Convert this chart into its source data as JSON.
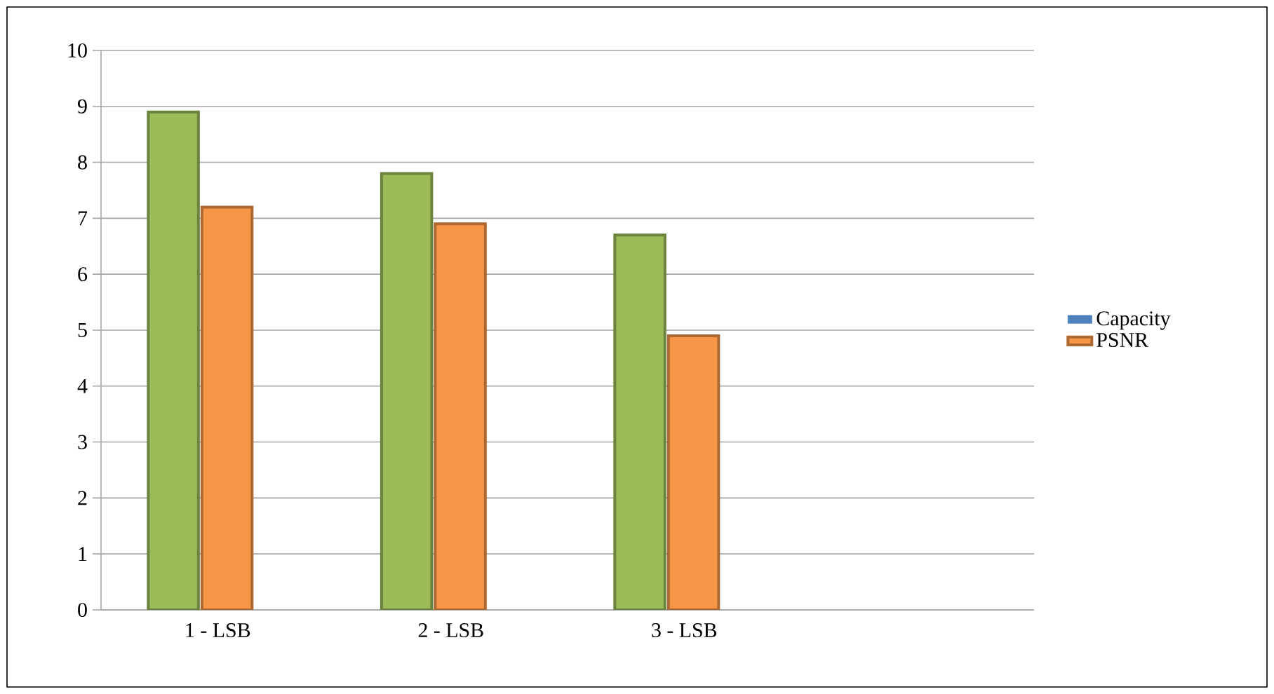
{
  "chart_data": {
    "type": "bar",
    "categories": [
      "1 - LSB",
      "2 - LSB",
      "3 - LSB",
      null
    ],
    "series": [
      {
        "color": "#9bbb59",
        "values": [
          8.9,
          7.8,
          6.7,
          null
        ]
      },
      {
        "name": "Capacity",
        "color": "#4f81bd",
        "values": [
          null,
          null,
          null,
          null
        ]
      },
      {
        "name": "PSNR",
        "color": "#f79646",
        "values": [
          7.2,
          6.9,
          4.9,
          null
        ]
      }
    ],
    "ylim": [
      0,
      10
    ],
    "yticks": [
      0,
      1,
      2,
      3,
      4,
      5,
      6,
      7,
      8,
      9,
      10
    ],
    "grid": "y",
    "legend": "right"
  }
}
